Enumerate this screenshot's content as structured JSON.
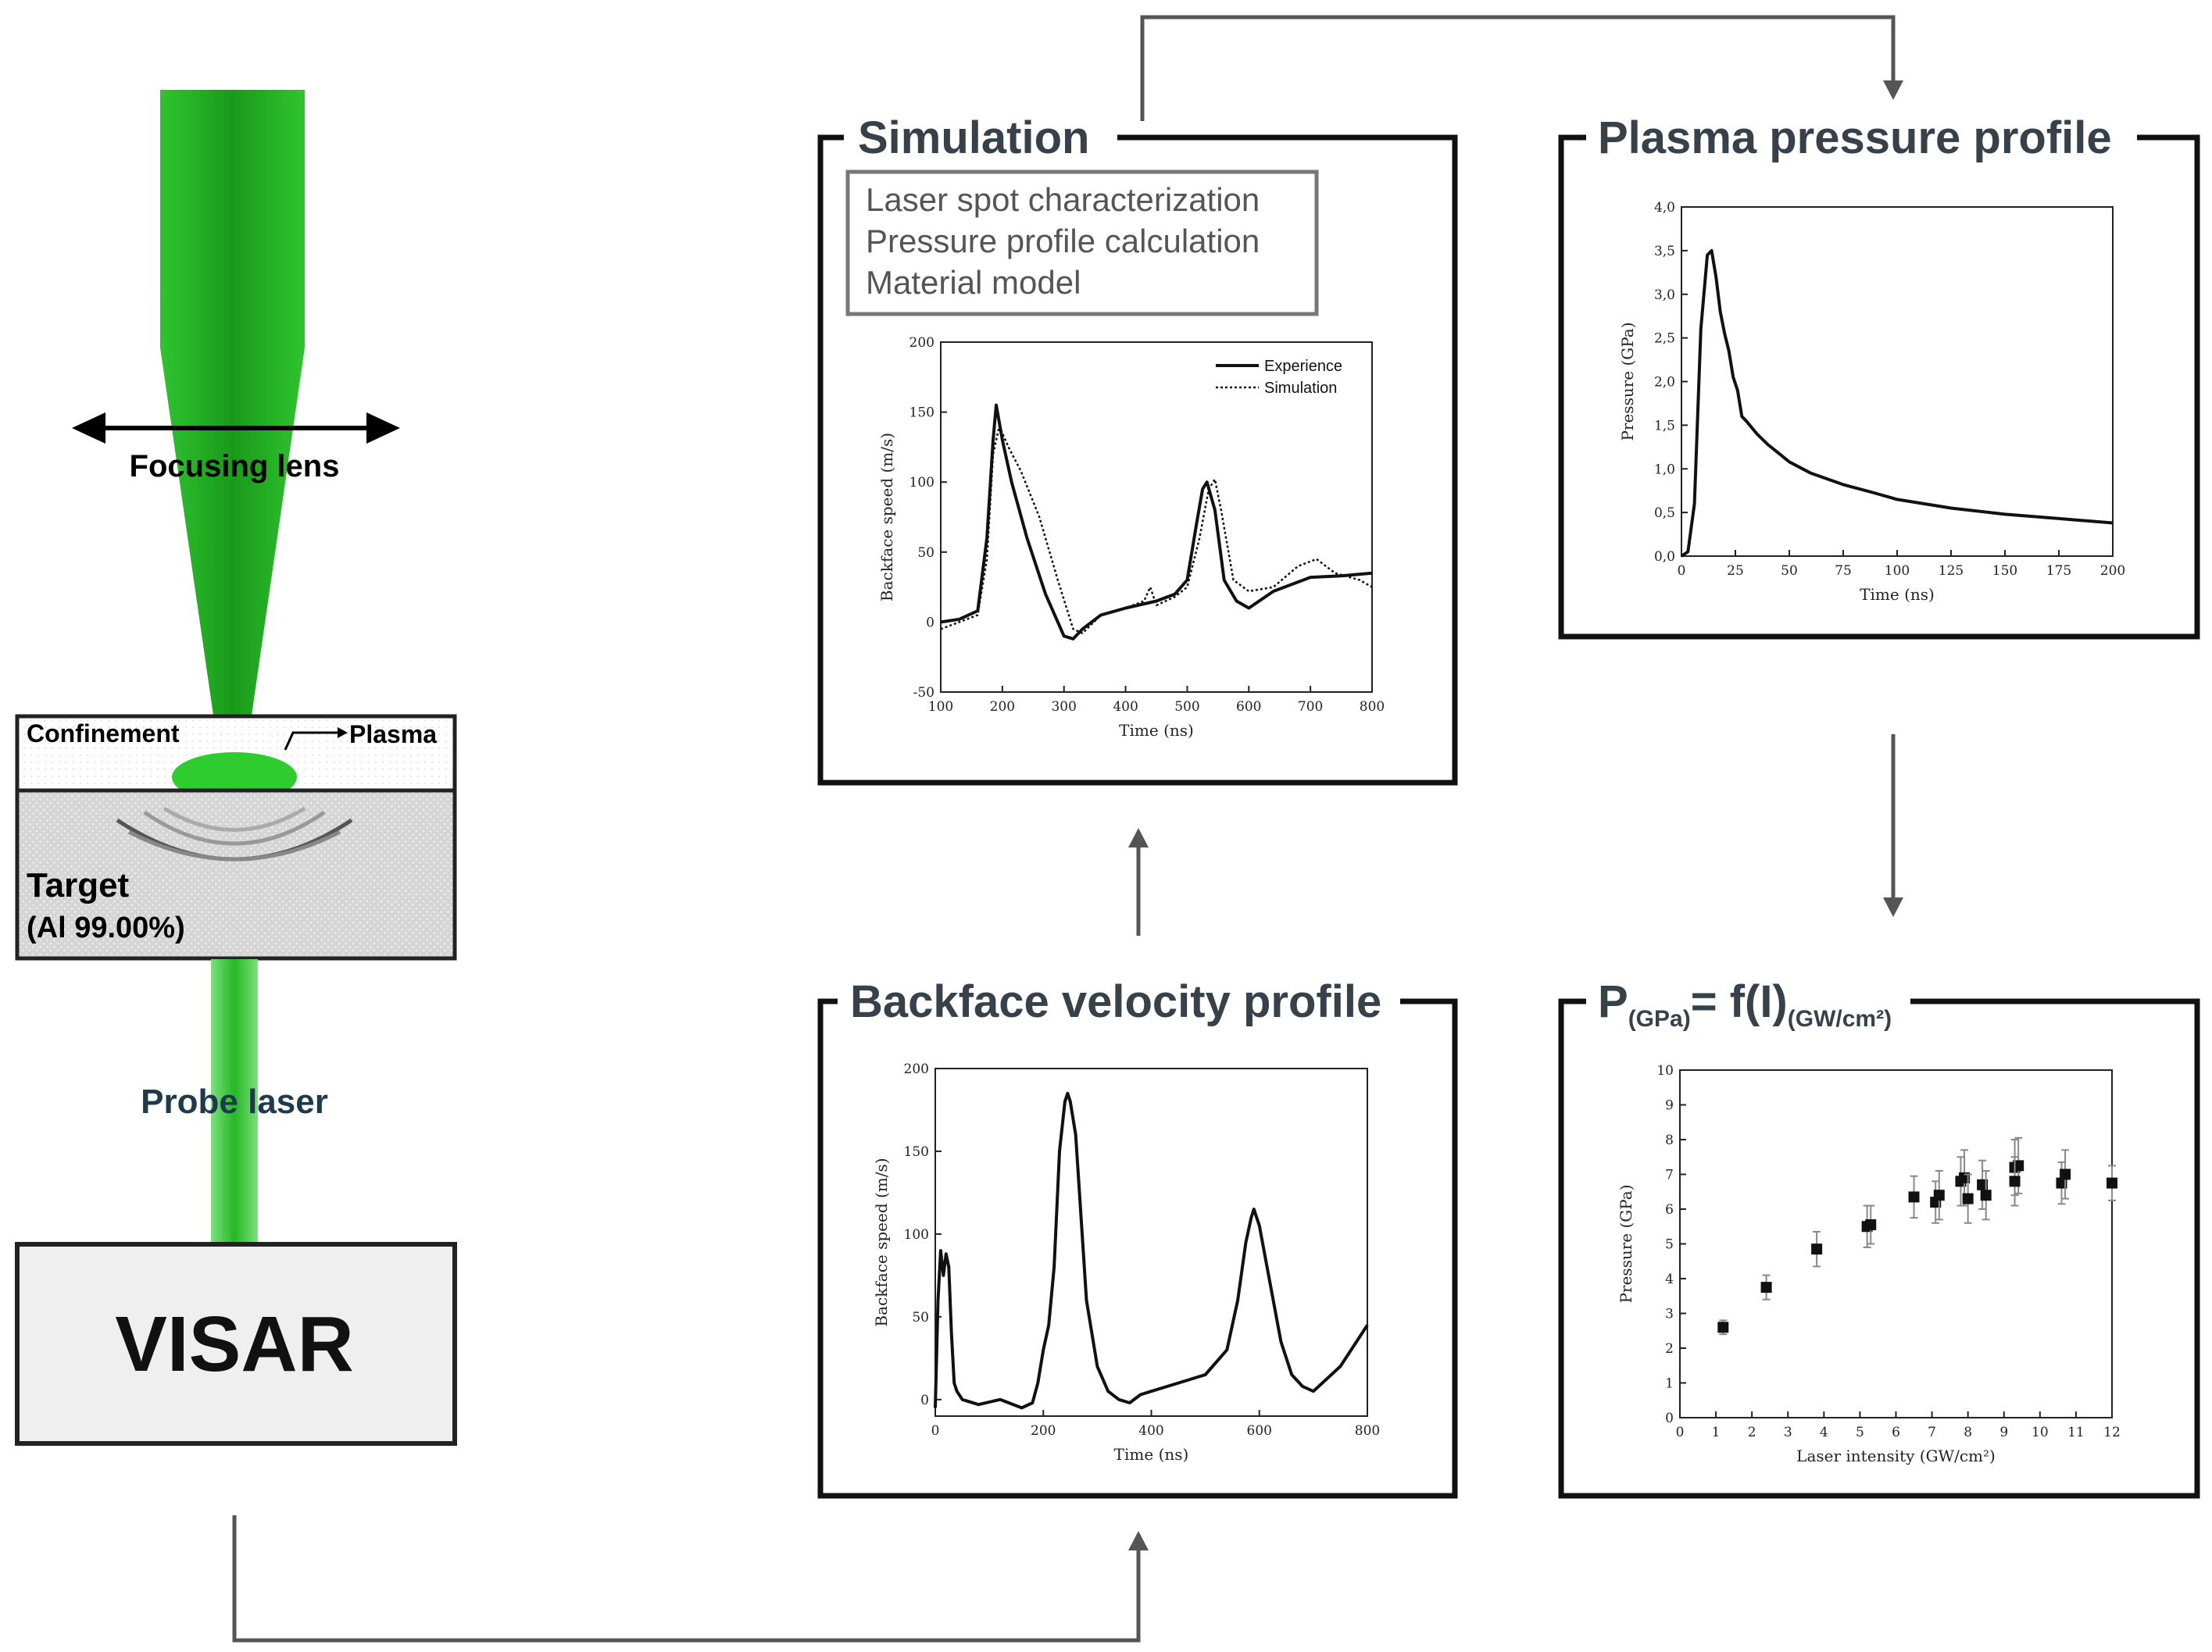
{
  "diagram": {
    "setup": {
      "focusing_lens": "Focusing lens",
      "confinement": "Confinement",
      "plasma": "Plasma",
      "target": "Target",
      "target_material": "(Al 99.00%)",
      "probe_laser": "Probe laser",
      "visar": "VISAR"
    },
    "simulation": {
      "title": "Simulation",
      "steps": [
        "Laser spot characterization",
        "Pressure profile calculation",
        "Material model"
      ]
    },
    "plasma_pressure": {
      "title": "Plasma pressure profile"
    },
    "backface_velocity": {
      "title": "Backface velocity profile"
    },
    "pressure_law": {
      "title_p": "P",
      "sub_p": "(GPa)",
      "eq": "= f(I)",
      "sub_i": "(GW/cm²)"
    },
    "colors": {
      "laser_green": "#2ecc2e",
      "title_grey": "#37414a",
      "arrow_grey": "#555555"
    }
  },
  "chart_data": [
    {
      "id": "simulation_chart",
      "type": "line",
      "xlabel": "Time (ns)",
      "ylabel": "Backface speed (m/s)",
      "xlim": [
        100,
        800
      ],
      "ylim": [
        -50,
        200
      ],
      "xticks": [
        100,
        200,
        300,
        400,
        500,
        600,
        700,
        800
      ],
      "yticks": [
        -50,
        0,
        50,
        100,
        150,
        200
      ],
      "legend": "top-right",
      "series": [
        {
          "name": "Experience",
          "style": "solid",
          "x": [
            100,
            130,
            160,
            175,
            185,
            190,
            200,
            215,
            240,
            270,
            300,
            315,
            330,
            360,
            400,
            450,
            480,
            500,
            515,
            525,
            532,
            545,
            560,
            580,
            600,
            640,
            700,
            750,
            800
          ],
          "y": [
            0,
            2,
            8,
            60,
            130,
            155,
            130,
            100,
            60,
            20,
            -10,
            -12,
            -5,
            5,
            10,
            15,
            20,
            30,
            70,
            95,
            100,
            80,
            30,
            15,
            10,
            22,
            32,
            33,
            35
          ]
        },
        {
          "name": "Simulation",
          "style": "dotted",
          "x": [
            100,
            130,
            160,
            175,
            185,
            195,
            210,
            230,
            260,
            290,
            315,
            330,
            360,
            400,
            430,
            440,
            450,
            480,
            500,
            520,
            535,
            545,
            555,
            575,
            600,
            640,
            680,
            710,
            740,
            780,
            800
          ],
          "y": [
            -5,
            0,
            5,
            45,
            120,
            140,
            125,
            108,
            75,
            30,
            -5,
            -8,
            5,
            10,
            15,
            25,
            12,
            18,
            25,
            60,
            95,
            102,
            80,
            30,
            22,
            25,
            40,
            45,
            35,
            30,
            25
          ]
        }
      ]
    },
    {
      "id": "plasma_pressure_chart",
      "type": "line",
      "xlabel": "Time (ns)",
      "ylabel": "Pressure (GPa)",
      "xlim": [
        0,
        200
      ],
      "ylim": [
        0,
        4
      ],
      "xticks": [
        "0",
        "25",
        "50",
        "75",
        "100",
        "125",
        "150",
        "175",
        "200"
      ],
      "yticks": [
        "0,0",
        "0,5",
        "1,0",
        "1,5",
        "2,0",
        "2,5",
        "3,0",
        "3,5",
        "4,0"
      ],
      "series": [
        {
          "x": [
            0,
            3,
            6,
            9,
            12,
            14,
            16,
            18,
            20,
            22,
            24,
            26,
            28,
            30,
            35,
            40,
            45,
            50,
            60,
            75,
            90,
            100,
            125,
            150,
            175,
            200
          ],
          "y": [
            0,
            0.05,
            0.6,
            2.6,
            3.45,
            3.5,
            3.2,
            2.8,
            2.55,
            2.35,
            2.05,
            1.9,
            1.6,
            1.55,
            1.4,
            1.28,
            1.18,
            1.08,
            0.95,
            0.82,
            0.72,
            0.65,
            0.55,
            0.48,
            0.43,
            0.38
          ]
        }
      ]
    },
    {
      "id": "backface_velocity_chart",
      "type": "line",
      "xlabel": "Time (ns)",
      "ylabel": "Backface speed (m/s)",
      "xlim": [
        0,
        800
      ],
      "ylim": [
        -10,
        200
      ],
      "xticks": [
        0,
        200,
        400,
        600,
        800
      ],
      "yticks": [
        0,
        50,
        100,
        150,
        200
      ],
      "series": [
        {
          "x": [
            0,
            5,
            10,
            15,
            20,
            25,
            30,
            35,
            40,
            50,
            80,
            120,
            160,
            180,
            190,
            200,
            210,
            220,
            230,
            240,
            245,
            250,
            260,
            270,
            280,
            300,
            320,
            340,
            360,
            380,
            400,
            450,
            500,
            540,
            560,
            575,
            585,
            590,
            600,
            620,
            640,
            660,
            680,
            700,
            750,
            800
          ],
          "y": [
            -5,
            60,
            90,
            75,
            88,
            80,
            40,
            10,
            5,
            0,
            -3,
            0,
            -5,
            -2,
            10,
            30,
            45,
            80,
            150,
            180,
            185,
            180,
            160,
            110,
            60,
            20,
            5,
            0,
            -2,
            3,
            5,
            10,
            15,
            30,
            60,
            95,
            110,
            115,
            105,
            70,
            35,
            15,
            8,
            5,
            20,
            45
          ]
        }
      ]
    },
    {
      "id": "pressure_intensity_chart",
      "type": "scatter",
      "xlabel": "Laser intensity (GW/cm²)",
      "ylabel": "Pressure (GPa)",
      "xlim": [
        0,
        12
      ],
      "ylim": [
        0,
        10
      ],
      "xticks": [
        0,
        1,
        2,
        3,
        4,
        5,
        6,
        7,
        8,
        9,
        10,
        11,
        12
      ],
      "yticks": [
        0,
        1,
        2,
        3,
        4,
        5,
        6,
        7,
        8,
        9,
        10
      ],
      "series": [
        {
          "x": [
            1.2,
            2.4,
            3.8,
            5.2,
            5.3,
            6.5,
            7.1,
            7.2,
            7.8,
            7.9,
            8.0,
            8.4,
            8.5,
            9.3,
            9.4,
            9.3,
            10.6,
            10.7,
            12.0
          ],
          "y": [
            2.6,
            3.75,
            4.85,
            5.5,
            5.55,
            6.35,
            6.2,
            6.4,
            6.8,
            6.9,
            6.3,
            6.7,
            6.4,
            7.2,
            7.25,
            6.8,
            6.75,
            7.0,
            6.75
          ],
          "err": [
            0.2,
            0.35,
            0.5,
            0.6,
            0.55,
            0.6,
            0.6,
            0.7,
            0.7,
            0.8,
            0.7,
            0.7,
            0.7,
            0.8,
            0.8,
            0.7,
            0.6,
            0.7,
            0.5
          ]
        }
      ]
    }
  ]
}
